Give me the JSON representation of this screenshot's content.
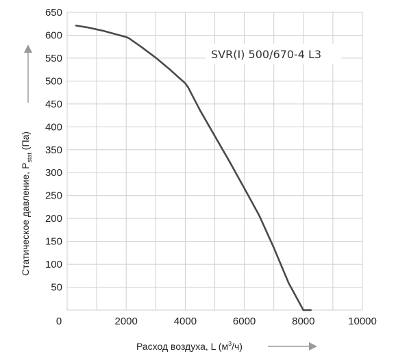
{
  "chart_data": {
    "type": "line",
    "title": "",
    "xlabel": "Расход воздуха, L (м³/ч)",
    "xlabel_parts": {
      "main": "Расход воздуха, L (м",
      "sup": "3",
      "tail": "/ч)"
    },
    "ylabel": "Статическое давление, Pstat (Па)",
    "ylabel_parts": {
      "main": "Статическое давление, P",
      "sub": "stat",
      "tail": " (Па)"
    },
    "xlim": [
      0,
      10000
    ],
    "ylim": [
      0,
      650
    ],
    "x_ticks": [
      "0",
      "2000",
      "4000",
      "6000",
      "8000",
      "10000"
    ],
    "y_ticks": [
      "50",
      "100",
      "150",
      "200",
      "250",
      "300",
      "350",
      "400",
      "450",
      "500",
      "550",
      "600",
      "650"
    ],
    "grid": true,
    "annotation": "SVR(I) 500/670-4 L3",
    "series": [
      {
        "name": "SVR(I) 500/670-4 L3",
        "color": "#4a4a4a",
        "x": [
          300,
          700,
          1200,
          1600,
          2000,
          2100,
          2500,
          3000,
          3500,
          4000,
          4100,
          4500,
          5000,
          5500,
          6000,
          6500,
          7000,
          7500,
          8000,
          8250
        ],
        "y": [
          621,
          617,
          610,
          603,
          596,
          593,
          575,
          551,
          524,
          495,
          486,
          436,
          380,
          324,
          266,
          207,
          136,
          59,
          -10,
          -10
        ]
      }
    ]
  }
}
